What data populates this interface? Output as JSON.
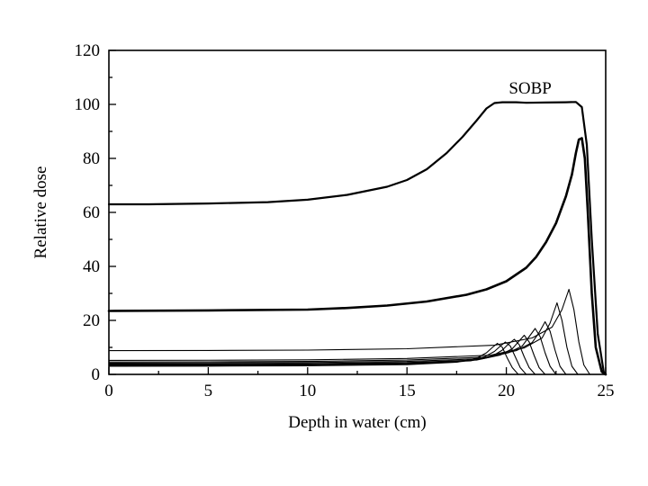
{
  "chart_data": {
    "type": "line",
    "xlabel": "Depth in water (cm)",
    "ylabel": "Relative dose",
    "xlim": [
      0,
      25
    ],
    "ylim": [
      0,
      120
    ],
    "x_ticks": [
      0,
      5,
      10,
      15,
      20,
      25
    ],
    "y_ticks": [
      0,
      20,
      40,
      60,
      80,
      100,
      120
    ],
    "x_tick_labels": [
      "0",
      "5",
      "10",
      "15",
      "20",
      "25"
    ],
    "y_tick_labels": [
      "0",
      "20",
      "40",
      "60",
      "80",
      "100",
      "120"
    ],
    "grid": false,
    "annotations": [
      {
        "text": "SOBP",
        "x": 21.2,
        "y": 106
      }
    ],
    "series": [
      {
        "role": "sobp",
        "x": [
          0,
          2,
          5,
          8,
          10,
          12,
          14,
          15,
          16,
          17,
          17.8,
          18.5,
          19.0,
          19.4,
          19.8,
          20.5,
          21,
          22,
          23,
          23.5,
          23.8,
          24.05,
          24.3,
          24.6,
          24.9,
          25.0
        ],
        "y": [
          63,
          63,
          63.3,
          63.8,
          64.7,
          66.5,
          69.5,
          72,
          76,
          82,
          88,
          94,
          98.5,
          100.5,
          100.8,
          100.8,
          100.6,
          100.7,
          100.8,
          100.9,
          99,
          85,
          50,
          15,
          1,
          0
        ]
      },
      {
        "role": "pristine",
        "x": [
          0,
          5,
          10,
          12,
          14,
          16,
          18,
          19,
          20,
          21,
          21.5,
          22,
          22.5,
          23,
          23.3,
          23.5,
          23.65,
          23.8,
          23.95,
          24.1,
          24.3,
          24.5,
          24.8,
          25.0
        ],
        "y": [
          23.5,
          23.7,
          24.0,
          24.6,
          25.5,
          27.0,
          29.5,
          31.5,
          34.5,
          39.5,
          43.5,
          49,
          56,
          66,
          74,
          82,
          87,
          87.5,
          80,
          60,
          30,
          10,
          1,
          0
        ]
      },
      {
        "role": "weighted",
        "x": [
          0,
          5,
          10,
          15,
          17.5,
          18.5,
          19.0,
          19.3,
          19.55,
          19.8,
          20.05,
          20.3,
          20.6
        ],
        "y": [
          3.0,
          3.05,
          3.2,
          3.6,
          4.5,
          6.0,
          8.0,
          10.0,
          11.5,
          10.0,
          6.0,
          2.5,
          0
        ]
      },
      {
        "role": "weighted",
        "x": [
          0,
          5,
          10,
          15,
          17.8,
          18.9,
          19.4,
          19.7,
          19.95,
          20.2,
          20.45,
          20.7,
          21.0
        ],
        "y": [
          3.3,
          3.35,
          3.5,
          3.9,
          4.8,
          6.5,
          8.5,
          10.5,
          12.0,
          10.5,
          6.5,
          2.5,
          0
        ]
      },
      {
        "role": "weighted",
        "x": [
          0,
          5,
          10,
          15,
          18.2,
          19.3,
          19.8,
          20.1,
          20.4,
          20.65,
          20.9,
          21.15,
          21.45
        ],
        "y": [
          3.5,
          3.55,
          3.7,
          4.1,
          5.0,
          6.8,
          9.0,
          11.2,
          13.0,
          11.0,
          6.5,
          2.5,
          0
        ]
      },
      {
        "role": "weighted",
        "x": [
          0,
          5,
          10,
          15,
          18.5,
          19.7,
          20.3,
          20.6,
          20.9,
          21.15,
          21.4,
          21.65,
          21.95
        ],
        "y": [
          3.8,
          3.85,
          4.0,
          4.4,
          5.3,
          7.2,
          9.5,
          12.0,
          14.5,
          12.0,
          7.0,
          2.5,
          0
        ]
      },
      {
        "role": "weighted",
        "x": [
          0,
          5,
          10,
          15,
          18.8,
          20.1,
          20.8,
          21.1,
          21.45,
          21.7,
          21.95,
          22.2,
          22.5
        ],
        "y": [
          4.2,
          4.25,
          4.4,
          4.8,
          5.8,
          8.0,
          10.5,
          13.5,
          17.0,
          14.0,
          8.0,
          3.0,
          0
        ]
      },
      {
        "role": "weighted",
        "x": [
          0,
          5,
          10,
          15,
          19.0,
          20.5,
          21.3,
          21.65,
          21.95,
          22.2,
          22.45,
          22.7,
          23.0
        ],
        "y": [
          4.6,
          4.65,
          4.8,
          5.3,
          6.4,
          8.8,
          11.8,
          15.5,
          19.5,
          16.0,
          9.0,
          3.0,
          0
        ]
      },
      {
        "role": "weighted",
        "x": [
          0,
          5,
          10,
          15,
          19.2,
          20.9,
          21.8,
          22.2,
          22.55,
          22.8,
          23.05,
          23.3,
          23.6
        ],
        "y": [
          5.2,
          5.25,
          5.4,
          5.9,
          7.1,
          9.8,
          13.5,
          19.0,
          26.5,
          20.0,
          10.0,
          3.0,
          0
        ]
      },
      {
        "role": "weighted",
        "x": [
          0,
          5,
          10,
          15,
          19.4,
          21.3,
          22.3,
          22.8,
          23.15,
          23.4,
          23.65,
          23.9,
          24.2
        ],
        "y": [
          8.8,
          8.85,
          9.0,
          9.5,
          10.8,
          13.5,
          17.5,
          24.0,
          31.5,
          24.0,
          12.0,
          3.5,
          0
        ]
      }
    ]
  }
}
